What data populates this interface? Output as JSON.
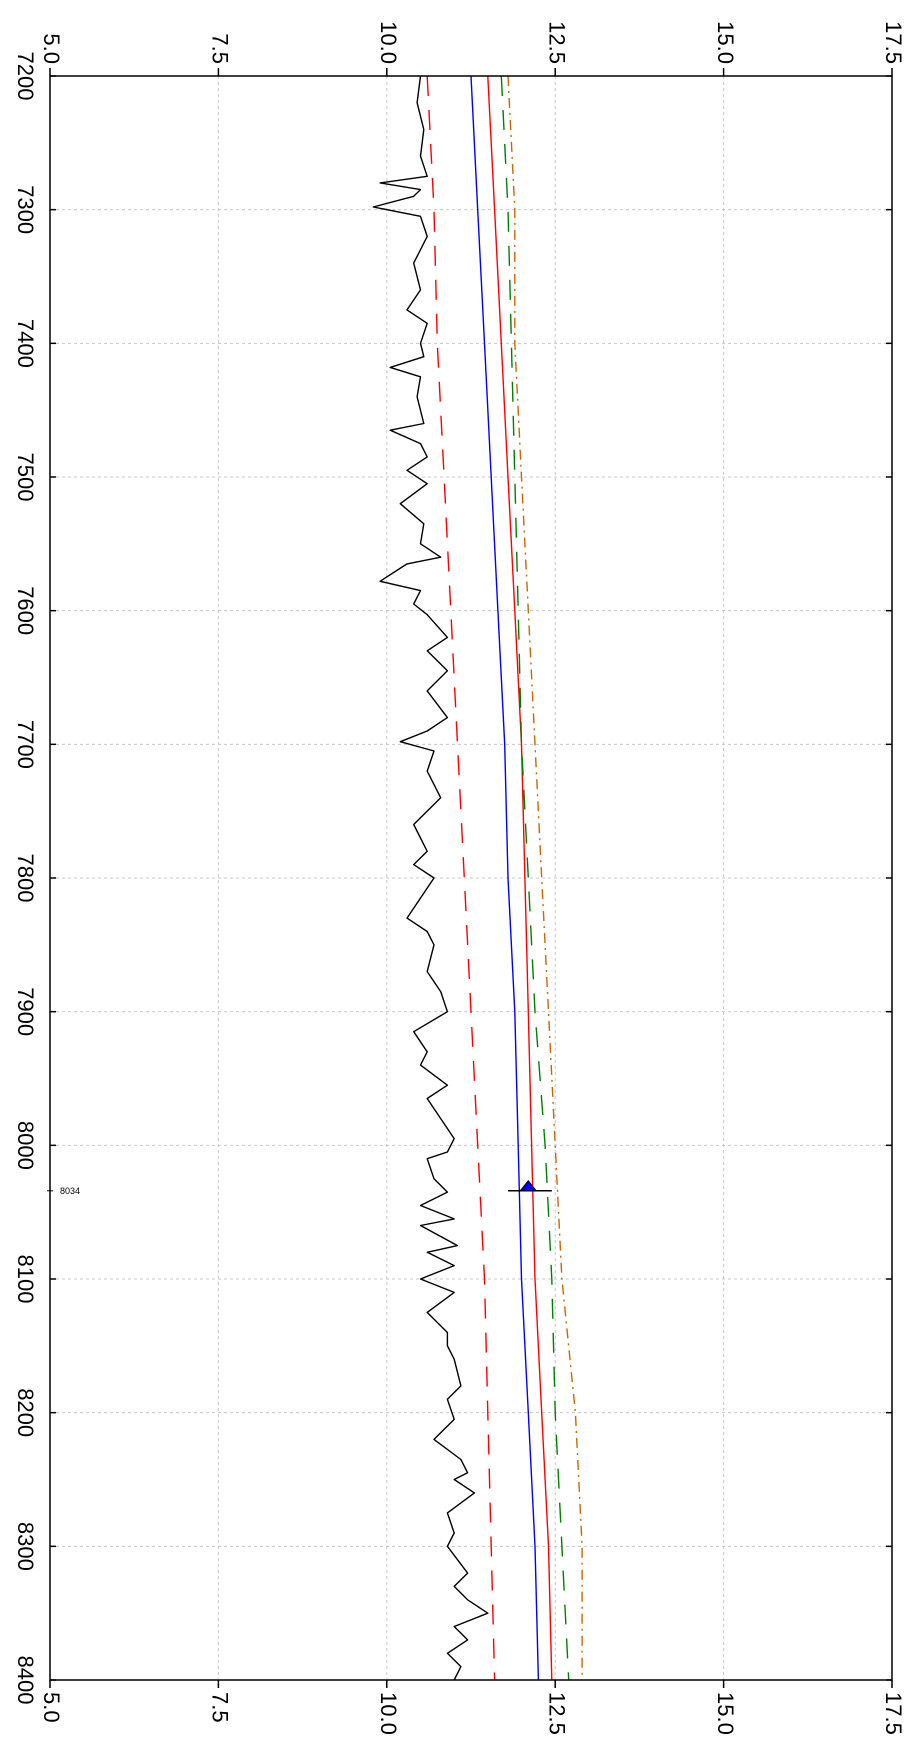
{
  "chart_data": {
    "type": "line",
    "orientation": "vertical-depth",
    "x_axis": {
      "range": [
        5.0,
        17.5
      ],
      "ticks": [
        "5.0",
        "7.5",
        "10.0",
        "12.5",
        "15.0",
        "17.5"
      ]
    },
    "y_axis": {
      "range": [
        7200,
        8400
      ],
      "inverted": true,
      "ticks": [
        "7200",
        "7300",
        "7400",
        "7500",
        "7600",
        "7700",
        "7800",
        "7900",
        "8000",
        "8100",
        "8200",
        "8300",
        "8400"
      ]
    },
    "grid": true,
    "series": [
      {
        "style": "solid",
        "color": "#000000",
        "points": [
          [
            10.5,
            7200
          ],
          [
            10.45,
            7220
          ],
          [
            10.55,
            7240
          ],
          [
            10.5,
            7260
          ],
          [
            10.6,
            7275
          ],
          [
            9.9,
            7280
          ],
          [
            10.5,
            7285
          ],
          [
            10.4,
            7290
          ],
          [
            9.8,
            7298
          ],
          [
            10.5,
            7305
          ],
          [
            10.6,
            7320
          ],
          [
            10.4,
            7340
          ],
          [
            10.5,
            7360
          ],
          [
            10.3,
            7375
          ],
          [
            10.6,
            7385
          ],
          [
            10.5,
            7400
          ],
          [
            10.55,
            7410
          ],
          [
            10.05,
            7418
          ],
          [
            10.5,
            7425
          ],
          [
            10.45,
            7440
          ],
          [
            10.55,
            7460
          ],
          [
            10.05,
            7465
          ],
          [
            10.5,
            7475
          ],
          [
            10.6,
            7485
          ],
          [
            10.3,
            7495
          ],
          [
            10.6,
            7505
          ],
          [
            10.2,
            7520
          ],
          [
            10.55,
            7535
          ],
          [
            10.5,
            7550
          ],
          [
            10.8,
            7560
          ],
          [
            10.3,
            7565
          ],
          [
            9.9,
            7578
          ],
          [
            10.5,
            7585
          ],
          [
            10.4,
            7595
          ],
          [
            10.6,
            7603
          ],
          [
            10.9,
            7620
          ],
          [
            10.6,
            7630
          ],
          [
            10.9,
            7645
          ],
          [
            10.6,
            7660
          ],
          [
            10.9,
            7680
          ],
          [
            10.6,
            7690
          ],
          [
            10.2,
            7698
          ],
          [
            10.7,
            7705
          ],
          [
            10.6,
            7720
          ],
          [
            10.8,
            7740
          ],
          [
            10.4,
            7760
          ],
          [
            10.6,
            7780
          ],
          [
            10.4,
            7790
          ],
          [
            10.7,
            7800
          ],
          [
            10.3,
            7830
          ],
          [
            10.6,
            7840
          ],
          [
            10.7,
            7850
          ],
          [
            10.6,
            7870
          ],
          [
            10.8,
            7885
          ],
          [
            10.9,
            7900
          ],
          [
            10.4,
            7915
          ],
          [
            10.6,
            7930
          ],
          [
            10.5,
            7940
          ],
          [
            10.9,
            7955
          ],
          [
            10.6,
            7965
          ],
          [
            10.8,
            7980
          ],
          [
            11.0,
            7995
          ],
          [
            10.9,
            8005
          ],
          [
            10.6,
            8010
          ],
          [
            10.7,
            8025
          ],
          [
            10.9,
            8035
          ],
          [
            10.5,
            8045
          ],
          [
            11.0,
            8055
          ],
          [
            10.5,
            8060
          ],
          [
            11.05,
            8075
          ],
          [
            10.6,
            8080
          ],
          [
            11.0,
            8090
          ],
          [
            10.5,
            8100
          ],
          [
            11.0,
            8110
          ],
          [
            10.6,
            8125
          ],
          [
            10.9,
            8140
          ],
          [
            10.9,
            8150
          ],
          [
            11.0,
            8160
          ],
          [
            11.1,
            8180
          ],
          [
            10.9,
            8190
          ],
          [
            11.0,
            8205
          ],
          [
            10.7,
            8220
          ],
          [
            11.1,
            8235
          ],
          [
            11.2,
            8245
          ],
          [
            11.0,
            8250
          ],
          [
            11.3,
            8260
          ],
          [
            10.9,
            8275
          ],
          [
            11.0,
            8290
          ],
          [
            10.9,
            8300
          ],
          [
            11.2,
            8320
          ],
          [
            11.0,
            8330
          ],
          [
            11.2,
            8340
          ],
          [
            11.5,
            8350
          ],
          [
            11.0,
            8360
          ],
          [
            11.2,
            8370
          ],
          [
            10.9,
            8380
          ],
          [
            11.1,
            8390
          ],
          [
            11.0,
            8400
          ]
        ]
      },
      {
        "style": "dashed",
        "color": "#ff0000",
        "points": [
          [
            10.6,
            7200
          ],
          [
            10.7,
            7300
          ],
          [
            10.75,
            7400
          ],
          [
            10.85,
            7500
          ],
          [
            10.95,
            7600
          ],
          [
            11.05,
            7700
          ],
          [
            11.15,
            7800
          ],
          [
            11.25,
            7900
          ],
          [
            11.35,
            8000
          ],
          [
            11.45,
            8100
          ],
          [
            11.5,
            8200
          ],
          [
            11.55,
            8300
          ],
          [
            11.6,
            8400
          ]
        ]
      },
      {
        "style": "solid",
        "color": "#0000ff",
        "points": [
          [
            11.25,
            7200
          ],
          [
            11.35,
            7300
          ],
          [
            11.45,
            7400
          ],
          [
            11.55,
            7500
          ],
          [
            11.65,
            7600
          ],
          [
            11.75,
            7700
          ],
          [
            11.8,
            7800
          ],
          [
            11.9,
            7900
          ],
          [
            11.95,
            8000
          ],
          [
            12.0,
            8100
          ],
          [
            12.1,
            8200
          ],
          [
            12.2,
            8300
          ],
          [
            12.25,
            8400
          ]
        ]
      },
      {
        "style": "solid",
        "color": "#ff0000",
        "points": [
          [
            11.5,
            7200
          ],
          [
            11.6,
            7300
          ],
          [
            11.7,
            7400
          ],
          [
            11.8,
            7500
          ],
          [
            11.9,
            7600
          ],
          [
            12.0,
            7700
          ],
          [
            12.05,
            7800
          ],
          [
            12.1,
            7900
          ],
          [
            12.15,
            8000
          ],
          [
            12.2,
            8100
          ],
          [
            12.3,
            8200
          ],
          [
            12.4,
            8300
          ],
          [
            12.45,
            8400
          ]
        ]
      },
      {
        "style": "dashed",
        "color": "#008000",
        "points": [
          [
            11.7,
            7200
          ],
          [
            11.8,
            7300
          ],
          [
            11.85,
            7400
          ],
          [
            11.9,
            7500
          ],
          [
            11.95,
            7600
          ],
          [
            12.0,
            7700
          ],
          [
            12.1,
            7800
          ],
          [
            12.2,
            7900
          ],
          [
            12.35,
            8000
          ],
          [
            12.45,
            8100
          ],
          [
            12.5,
            8200
          ],
          [
            12.6,
            8300
          ],
          [
            12.7,
            8400
          ]
        ]
      },
      {
        "style": "dashdot",
        "color": "#cc6600",
        "points": [
          [
            11.8,
            7200
          ],
          [
            11.9,
            7300
          ],
          [
            11.9,
            7400
          ],
          [
            12.0,
            7500
          ],
          [
            12.1,
            7600
          ],
          [
            12.2,
            7700
          ],
          [
            12.3,
            7800
          ],
          [
            12.4,
            7900
          ],
          [
            12.5,
            8000
          ],
          [
            12.6,
            8100
          ],
          [
            12.8,
            8200
          ],
          [
            12.9,
            8300
          ],
          [
            12.9,
            8400
          ]
        ]
      }
    ],
    "marker": {
      "label": "8034",
      "y": 8034,
      "x_start": 11.8,
      "x_end": 12.45,
      "tip_x": 12.1
    }
  }
}
